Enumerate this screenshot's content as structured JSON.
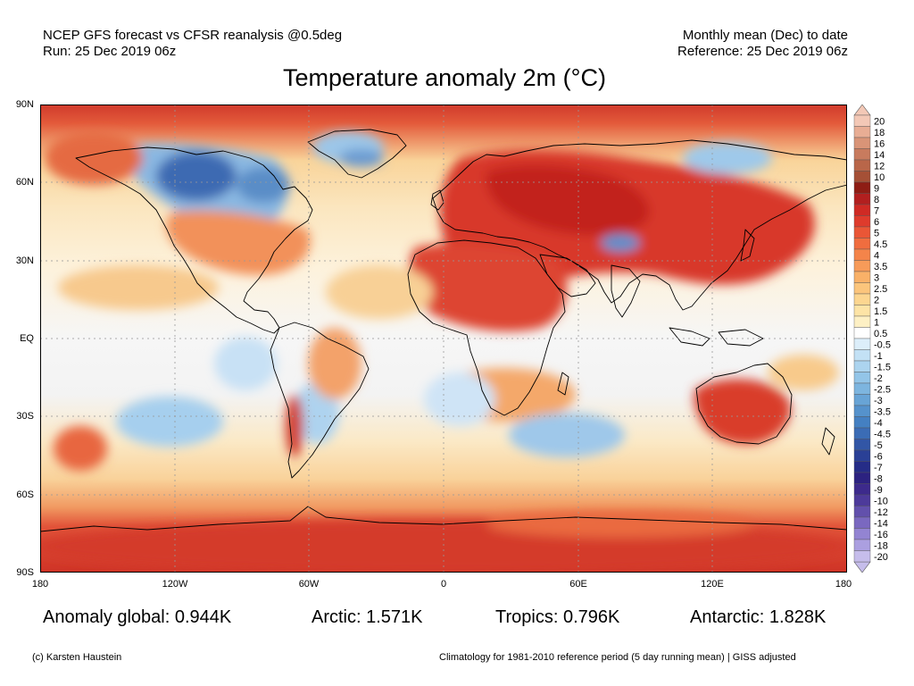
{
  "header": {
    "line1_left": "NCEP GFS forecast vs CFSR reanalysis @0.5deg",
    "line2_left": "Run: 25 Dec 2019 06z",
    "line1_right": "Monthly mean (Dec) to date",
    "line2_right": "Reference: 25 Dec 2019 06z"
  },
  "title": "Temperature anomaly 2m (°C)",
  "axes": {
    "lat_labels": [
      "90N",
      "60N",
      "30N",
      "EQ",
      "30S",
      "60S",
      "90S"
    ],
    "lon_labels": [
      "180",
      "120W",
      "60W",
      "0",
      "60E",
      "120E",
      "180"
    ]
  },
  "colorbar": {
    "levels": [
      "20",
      "18",
      "16",
      "14",
      "12",
      "10",
      "9",
      "8",
      "7",
      "6",
      "5",
      "4.5",
      "4",
      "3.5",
      "3",
      "2.5",
      "2",
      "1.5",
      "1",
      "0.5",
      "-0.5",
      "-1",
      "-1.5",
      "-2",
      "-2.5",
      "-3",
      "-3.5",
      "-4",
      "-4.5",
      "-5",
      "-6",
      "-7",
      "-8",
      "-9",
      "-10",
      "-12",
      "-14",
      "-16",
      "-18",
      "-20"
    ],
    "colors": [
      "#f3c8b6",
      "#e8ad94",
      "#d99477",
      "#c87b5e",
      "#b96649",
      "#a55036",
      "#8e1d14",
      "#b21f1f",
      "#cf2a24",
      "#de3b2c",
      "#ea5636",
      "#f06d3f",
      "#f4844a",
      "#f79b59",
      "#f9b168",
      "#fbc57c",
      "#fcd690",
      "#fde4a6",
      "#fdf0c4",
      "#ffffff",
      "#dceefa",
      "#c3e1f5",
      "#acd4ef",
      "#93c5e8",
      "#7db5df",
      "#68a4d6",
      "#5592cc",
      "#4480c2",
      "#3b6cb5",
      "#3256a6",
      "#2a4096",
      "#252c87",
      "#2c2280",
      "#3d2a8c",
      "#4d3a9a",
      "#6250ac",
      "#7a68c0",
      "#9384d2",
      "#ab9fe0",
      "#c6bdeb"
    ]
  },
  "stats": {
    "global_label": "Anomaly global:",
    "global_value": "0.944K",
    "arctic_label": "Arctic:",
    "arctic_value": "1.571K",
    "tropics_label": "Tropics:",
    "tropics_value": "0.796K",
    "antarctic_label": "Antarctic:",
    "antarctic_value": "1.828K"
  },
  "footer": {
    "left": "(c) Karsten Haustein",
    "right": "Climatology for 1981-2010 reference period (5 day running mean) | GISS adjusted"
  }
}
